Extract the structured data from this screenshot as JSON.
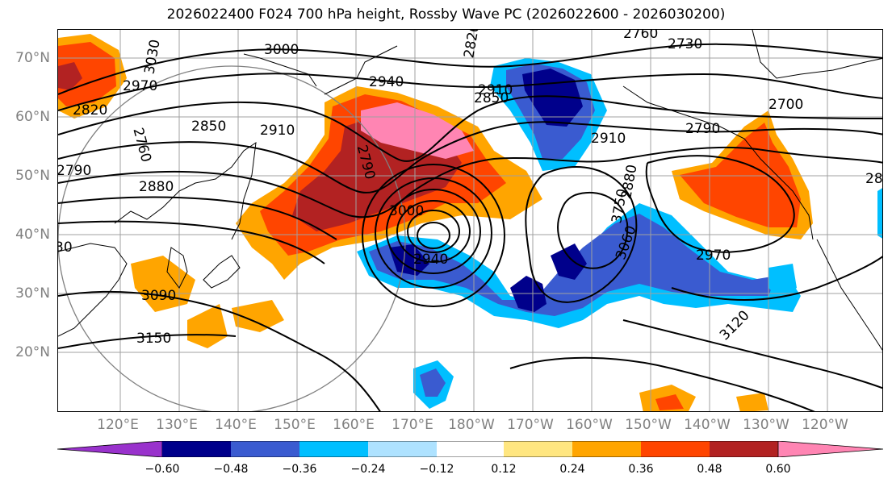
{
  "title": "2026022400 F024 700 hPa height, Rossby Wave PC (2026022600 - 2026030200)",
  "lat_labels": [
    "70°N",
    "60°N",
    "50°N",
    "40°N",
    "30°N",
    "20°N"
  ],
  "lon_labels": [
    "120°E",
    "130°E",
    "140°E",
    "150°E",
    "160°E",
    "170°E",
    "180°W",
    "170°W",
    "160°W",
    "150°W",
    "140°W",
    "130°W",
    "120°W"
  ],
  "colorbar": {
    "ticks": [
      "−0.60",
      "−0.48",
      "−0.36",
      "−0.24",
      "−0.12",
      "0.12",
      "0.24",
      "0.36",
      "0.48",
      "0.60"
    ],
    "colors": [
      "#9932cc",
      "#00008b",
      "#3a5bd0",
      "#00bfff",
      "#aee2ff",
      "#ffffff",
      "#ffe680",
      "#ffa500",
      "#ff4500",
      "#b22222",
      "#ff85b3"
    ]
  },
  "contour_labels": [
    "2760",
    "2730",
    "2700",
    "2790",
    "3030",
    "3000",
    "2970",
    "2940",
    "2820",
    "2850",
    "2910",
    "2880",
    "3090",
    "3150",
    "3060",
    "3120",
    "3000",
    "2940",
    "2910",
    "2880",
    "3750",
    "2970",
    "2850",
    "2820",
    "2790",
    "2910",
    "2760",
    "28",
    "30"
  ]
}
